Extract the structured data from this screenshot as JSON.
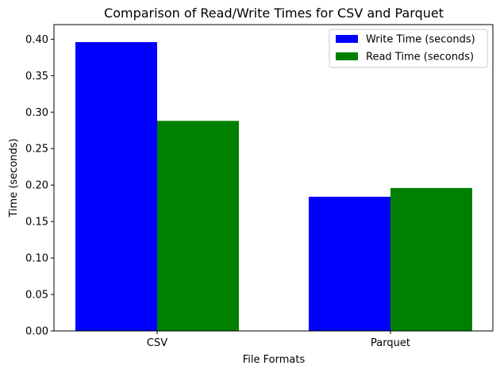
{
  "chart_data": {
    "type": "bar",
    "title": "Comparison of Read/Write Times for CSV and Parquet",
    "xlabel": "File Formats",
    "ylabel": "Time (seconds)",
    "categories": [
      "CSV",
      "Parquet"
    ],
    "series": [
      {
        "name": "Write Time (seconds)",
        "values": [
          0.396,
          0.184
        ],
        "color": "#0000ff"
      },
      {
        "name": "Read Time (seconds)",
        "values": [
          0.288,
          0.196
        ],
        "color": "#008000"
      }
    ],
    "ylim": [
      0,
      0.42
    ],
    "yticks": [
      "0.00",
      "0.05",
      "0.10",
      "0.15",
      "0.20",
      "0.25",
      "0.30",
      "0.35",
      "0.40"
    ],
    "grid": false,
    "legend_position": "top-right"
  }
}
